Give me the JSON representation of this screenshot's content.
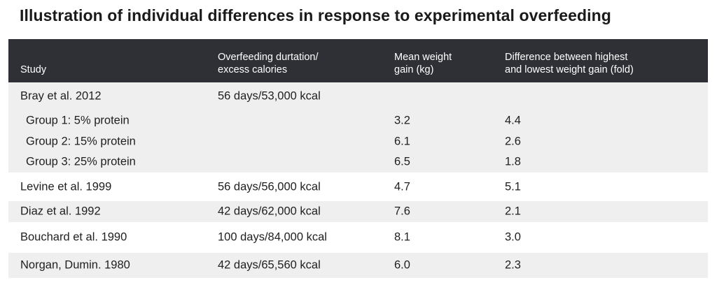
{
  "title": "Illustration of individual differences in response to experimental overfeeding",
  "columns": {
    "study": "Study",
    "duration_line1": "Overfeeding durtation/",
    "duration_line2": "excess calories",
    "gain_line1": "Mean weight",
    "gain_line2": "gain (kg)",
    "diff_line1": "Difference between highest",
    "diff_line2": "and lowest weight gain (fold)"
  },
  "bray": {
    "study": "Bray et al. 2012",
    "duration": "56 days/53,000 kcal",
    "groups": [
      {
        "label": "Group 1: 5% protein",
        "gain": "3.2",
        "fold": "4.4"
      },
      {
        "label": "Group 2: 15% protein",
        "gain": "6.1",
        "fold": "2.6"
      },
      {
        "label": "Group 3: 25% protein",
        "gain": "6.5",
        "fold": "1.8"
      }
    ]
  },
  "rows": [
    {
      "study": "Levine et al. 1999",
      "duration": "56 days/56,000 kcal",
      "gain": "4.7",
      "fold": "5.1"
    },
    {
      "study": "Diaz et al. 1992",
      "duration": "42 days/62,000 kcal",
      "gain": "7.6",
      "fold": "2.1"
    },
    {
      "study": "Bouchard et al. 1990",
      "duration": "100 days/84,000 kcal",
      "gain": "8.1",
      "fold": "3.0"
    },
    {
      "study": "Norgan, Dumin. 1980",
      "duration": "42 days/65,560 kcal",
      "gain": "6.0",
      "fold": "2.3"
    }
  ],
  "colors": {
    "header_bg": "#2e3036",
    "row_shade": "#efefef"
  }
}
